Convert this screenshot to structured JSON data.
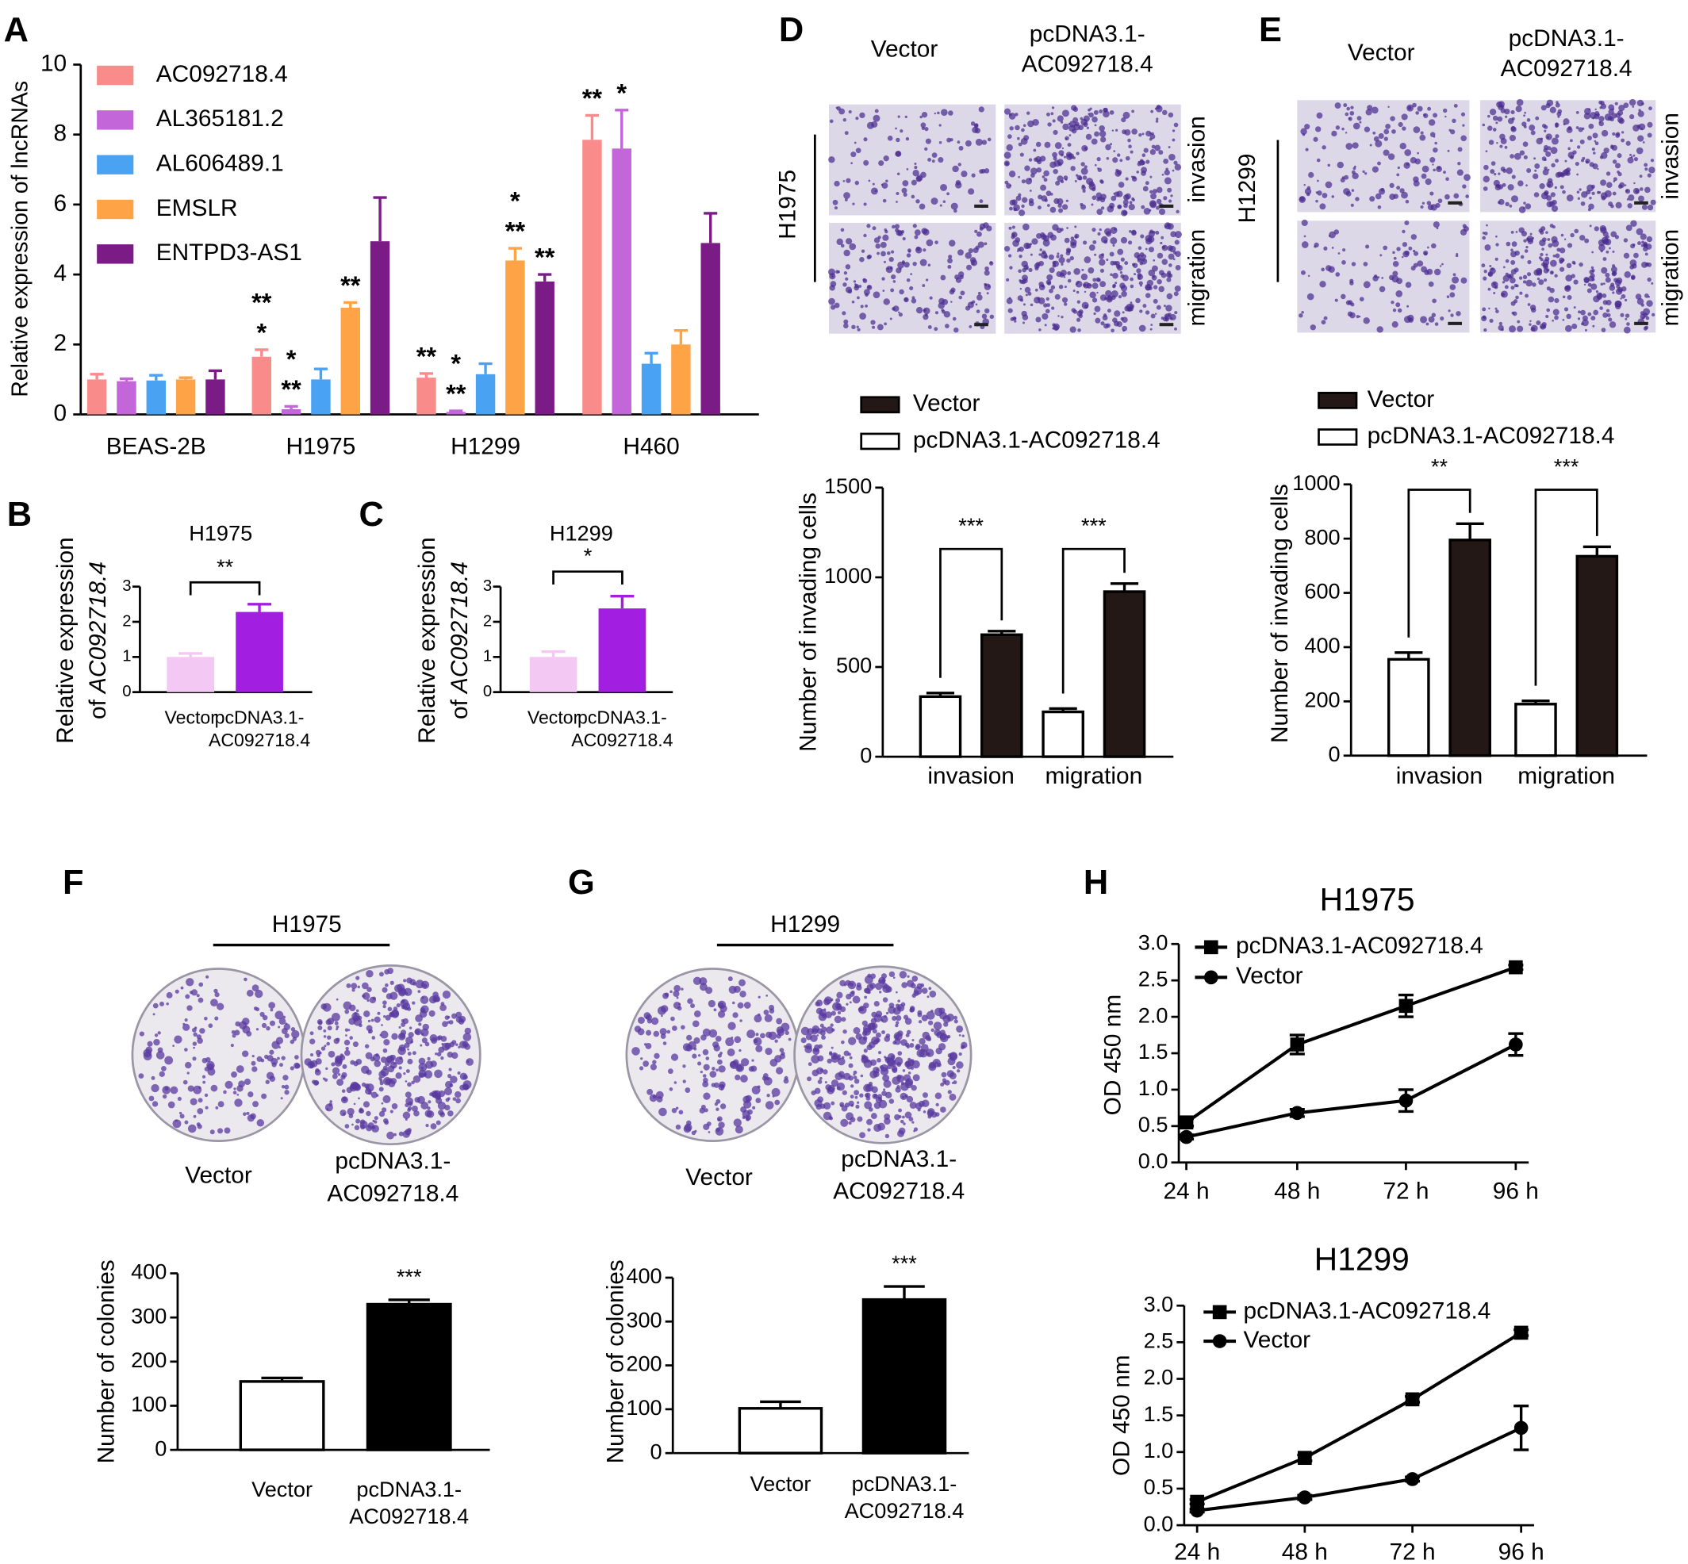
{
  "figure": {
    "panel_letters": [
      "A",
      "B",
      "C",
      "D",
      "E",
      "F",
      "G",
      "H"
    ],
    "micrographs": [
      {
        "columns": [
          [
            "Vector"
          ],
          [
            "pcDNA3.1-",
            "AC092718.4"
          ]
        ],
        "cell_line": "H1975",
        "rows": [
          "invasion",
          "migration"
        ]
      },
      {
        "columns": [
          [
            "Vector"
          ],
          [
            "pcDNA3.1-",
            "AC092718.4"
          ]
        ],
        "cell_line": "H1299",
        "rows": [
          "invasion",
          "migration"
        ]
      }
    ],
    "colony_plates": [
      {
        "cell_line": "H1975",
        "labels": [
          [
            "Vector"
          ],
          [
            "pcDNA3.1-",
            "AC092718.4"
          ]
        ]
      },
      {
        "cell_line": "H1299",
        "labels": [
          [
            "Vector"
          ],
          [
            "pcDNA3.1-",
            "AC092718.4"
          ]
        ]
      }
    ]
  },
  "chart_data": [
    {
      "type": "bar",
      "ylabel": "Relative expression of lncRNAs",
      "categories": [
        "BEAS-2B",
        "H1975",
        "H1299",
        "H460"
      ],
      "ylim": [
        0,
        10
      ],
      "yticks": [
        0,
        2,
        4,
        6,
        8,
        10
      ],
      "series": [
        {
          "name": "AC092718.4",
          "color": "#f98b8b",
          "values": [
            1.0,
            1.65,
            1.05,
            7.85
          ],
          "errors": [
            0.15,
            0.2,
            0.12,
            0.7
          ],
          "stars": [
            null,
            [
              "**",
              "*"
            ],
            [
              "**"
            ],
            [
              "**"
            ]
          ],
          "star_colors": [
            null,
            [
              "#e8262a",
              "#000000"
            ],
            [
              "#e8262a"
            ],
            [
              "#000000"
            ]
          ]
        },
        {
          "name": "AL365181.2",
          "color": "#c266d9",
          "values": [
            0.95,
            0.15,
            0.07,
            7.6
          ],
          "errors": [
            0.07,
            0.08,
            0.03,
            1.1
          ],
          "stars": [
            null,
            [
              "*",
              "**"
            ],
            [
              "*",
              "**"
            ],
            [
              "*"
            ]
          ],
          "star_colors": [
            null,
            [
              "#e8262a",
              "#000000"
            ],
            [
              "#e8262a",
              "#000000"
            ],
            [
              "#000000"
            ]
          ]
        },
        {
          "name": "AL606489.1",
          "color": "#4aa3f2",
          "values": [
            0.97,
            1.0,
            1.15,
            1.45
          ],
          "errors": [
            0.15,
            0.3,
            0.3,
            0.3
          ]
        },
        {
          "name": "EMSLR",
          "color": "#ffa347",
          "values": [
            1.0,
            3.05,
            4.4,
            2.0
          ],
          "errors": [
            0.05,
            0.15,
            0.35,
            0.4
          ],
          "stars": [
            null,
            [
              "**"
            ],
            [
              "*",
              "**"
            ],
            null
          ],
          "star_colors": [
            null,
            [
              "#000000"
            ],
            [
              "#e8262a",
              "#000000"
            ],
            null
          ]
        },
        {
          "name": "ENTPD3-AS1",
          "color": "#7a1b86",
          "values": [
            1.0,
            4.95,
            3.8,
            4.9
          ],
          "errors": [
            0.25,
            1.25,
            0.2,
            0.85
          ],
          "stars": [
            null,
            null,
            [
              "**"
            ],
            null
          ],
          "star_colors": [
            null,
            null,
            [
              "#000000"
            ],
            null
          ]
        }
      ]
    },
    {
      "type": "bar",
      "title": "H1975",
      "ylabel": [
        "Relative expression",
        "of",
        "AC092718.4"
      ],
      "categories": [
        [
          "Vector"
        ],
        [
          "pcDNA3.1-",
          "AC092718.4"
        ]
      ],
      "values": [
        1.0,
        2.28
      ],
      "errors": [
        0.1,
        0.22
      ],
      "colors": [
        "#f3c9f3",
        "#a21ee0"
      ],
      "ylim": [
        0,
        3
      ],
      "yticks": [
        0,
        1,
        2,
        3
      ],
      "significance": "**"
    },
    {
      "type": "bar",
      "title": "H1299",
      "ylabel": [
        "Relative expression",
        "of",
        "AC092718.4"
      ],
      "categories": [
        [
          "Vector"
        ],
        [
          "pcDNA3.1-",
          "AC092718.4"
        ]
      ],
      "values": [
        1.0,
        2.38
      ],
      "errors": [
        0.15,
        0.35
      ],
      "colors": [
        "#f3c9f3",
        "#a21ee0"
      ],
      "ylim": [
        0,
        3
      ],
      "yticks": [
        0,
        1,
        2,
        3
      ],
      "significance": "*"
    },
    {
      "type": "bar",
      "ylabel": "Number of invading cells",
      "categories": [
        "invasion",
        "migration"
      ],
      "ylim": [
        0,
        1500
      ],
      "yticks": [
        0,
        500,
        1000,
        1500
      ],
      "series": [
        {
          "name": "Vector",
          "color": "#231815",
          "values": [
            680,
            920
          ],
          "errors": [
            20,
            45
          ]
        },
        {
          "name": "pcDNA3.1-AC092718.4",
          "color": "#ffffff",
          "values": [
            335,
            250
          ],
          "errors": [
            20,
            18
          ]
        }
      ],
      "significance": [
        "***",
        "***"
      ]
    },
    {
      "type": "bar",
      "ylabel": "Number of invading cells",
      "categories": [
        "invasion",
        "migration"
      ],
      "ylim": [
        0,
        1000
      ],
      "yticks": [
        0,
        200,
        400,
        600,
        800,
        1000
      ],
      "series": [
        {
          "name": "Vector",
          "color": "#231815",
          "values": [
            795,
            735
          ],
          "errors": [
            60,
            35
          ]
        },
        {
          "name": "pcDNA3.1-AC092718.4",
          "color": "#ffffff",
          "values": [
            355,
            190
          ],
          "errors": [
            25,
            12
          ]
        }
      ],
      "significance": [
        "**",
        "***"
      ]
    },
    {
      "type": "bar",
      "ylabel": "Number of colonies",
      "categories": [
        [
          "Vector"
        ],
        [
          "pcDNA3.1-",
          "AC092718.4"
        ]
      ],
      "values": [
        155,
        330
      ],
      "errors": [
        8,
        10
      ],
      "colors": [
        "#ffffff",
        "#000000"
      ],
      "ylim": [
        0,
        400
      ],
      "yticks": [
        0,
        100,
        200,
        300,
        400
      ],
      "significance": "***"
    },
    {
      "type": "bar",
      "ylabel": "Number of colonies",
      "categories": [
        [
          "Vector"
        ],
        [
          "pcDNA3.1-",
          "AC092718.4"
        ]
      ],
      "values": [
        102,
        350
      ],
      "errors": [
        15,
        30
      ],
      "colors": [
        "#ffffff",
        "#000000"
      ],
      "ylim": [
        0,
        400
      ],
      "yticks": [
        0,
        100,
        200,
        300,
        400
      ],
      "significance": "***"
    },
    {
      "type": "line",
      "title": "H1975",
      "ylabel": "OD 450 nm",
      "categories": [
        "24 h",
        "48 h",
        "72 h",
        "96 h"
      ],
      "ylim": [
        0,
        3
      ],
      "yticks": [
        {
          "value": 0,
          "label": "0.0"
        },
        0.5,
        {
          "value": 1,
          "label": "1.0"
        },
        1.5,
        {
          "value": 2,
          "label": "2.0"
        },
        2.5,
        {
          "value": 3,
          "label": "3.0"
        }
      ],
      "series": [
        {
          "name": "pcDNA3.1-AC092718.4",
          "color": "#000000",
          "marker": "square",
          "values": [
            0.55,
            1.62,
            2.15,
            2.68
          ],
          "errors": [
            0.05,
            0.13,
            0.15,
            0.03
          ]
        },
        {
          "name": "Vector",
          "color": "#000000",
          "marker": "circle",
          "values": [
            0.35,
            0.68,
            0.85,
            1.62
          ],
          "errors": [
            0.03,
            0.05,
            0.15,
            0.15
          ]
        }
      ]
    },
    {
      "type": "line",
      "title": "H1299",
      "ylabel": "OD 450 nm",
      "categories": [
        "24 h",
        "48 h",
        "72 h",
        "96 h"
      ],
      "ylim": [
        0,
        3
      ],
      "yticks": [
        {
          "value": 0,
          "label": "0.0"
        },
        0.5,
        {
          "value": 1,
          "label": "1.0"
        },
        1.5,
        {
          "value": 2,
          "label": "2.0"
        },
        2.5,
        {
          "value": 3,
          "label": "3.0"
        }
      ],
      "series": [
        {
          "name": "pcDNA3.1-AC092718.4",
          "color": "#000000",
          "marker": "square",
          "values": [
            0.32,
            0.92,
            1.72,
            2.63
          ],
          "errors": [
            0.03,
            0.04,
            0.04,
            0.04
          ]
        },
        {
          "name": "Vector",
          "color": "#000000",
          "marker": "circle",
          "values": [
            0.2,
            0.38,
            0.63,
            1.33
          ],
          "errors": [
            0.02,
            0.03,
            0.03,
            0.3
          ]
        }
      ]
    }
  ]
}
